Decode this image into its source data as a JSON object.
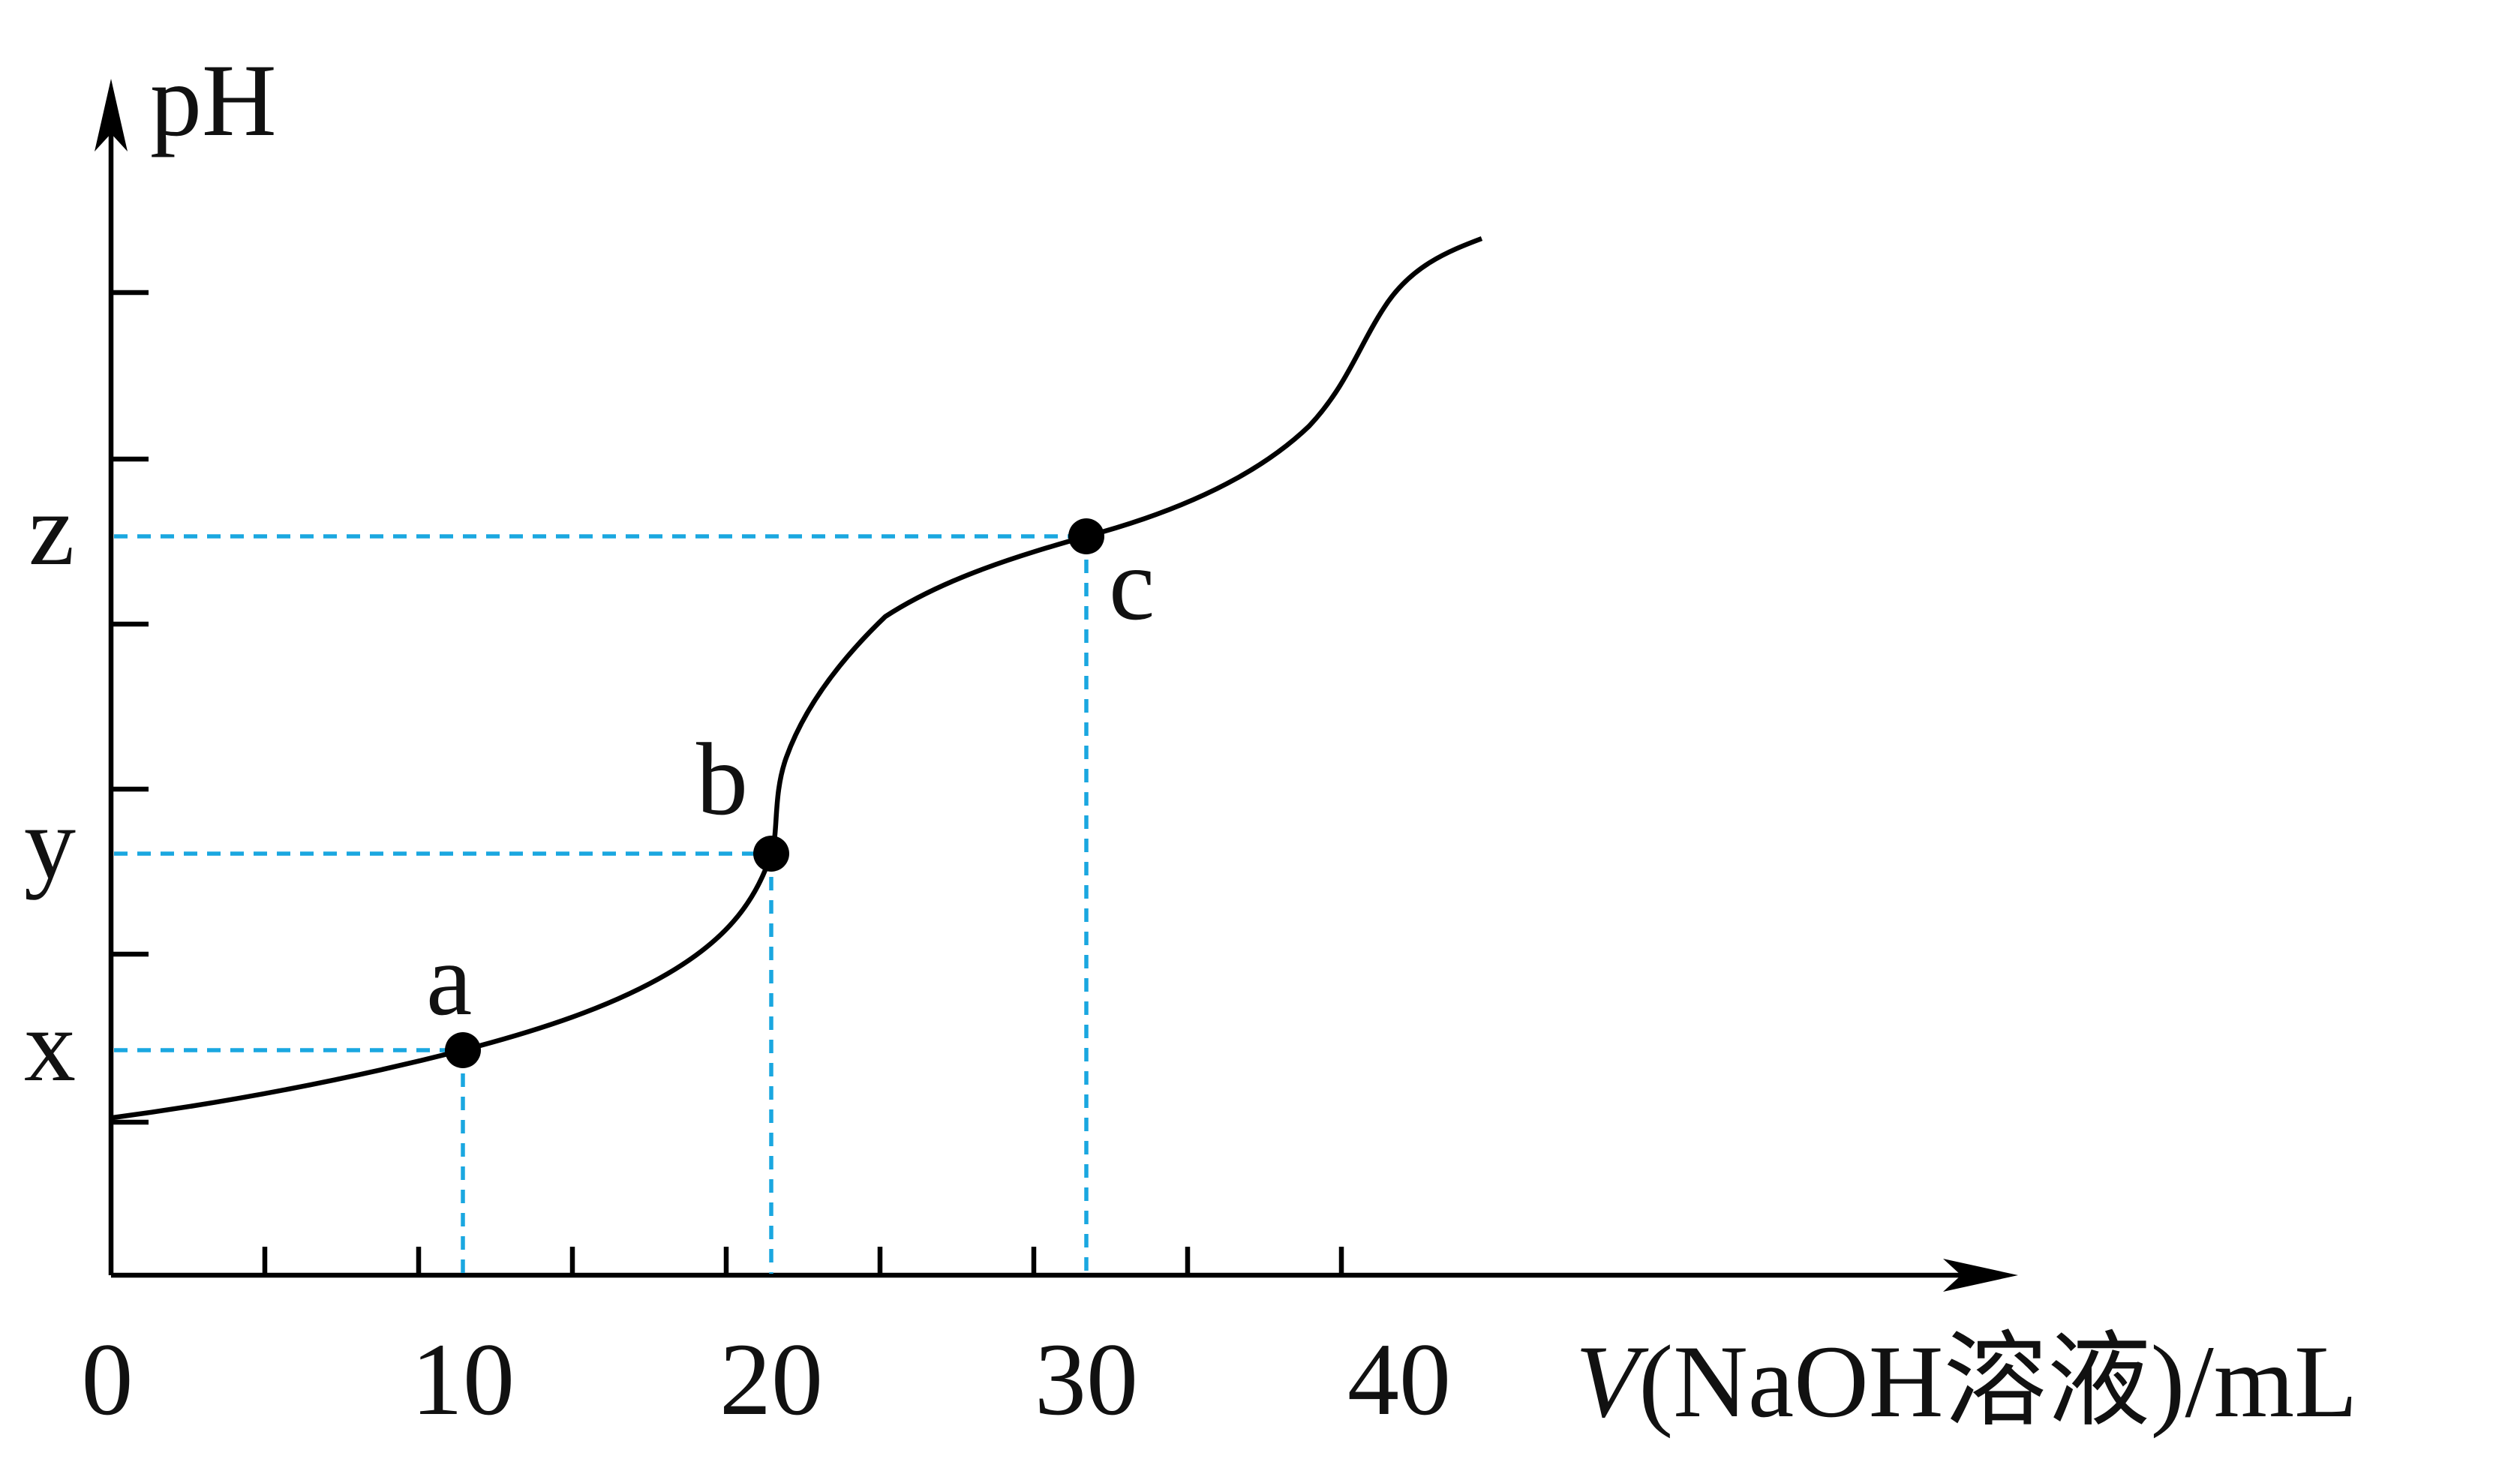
{
  "chart_data": {
    "type": "line",
    "title": "",
    "ylabel": "pH",
    "xlabel": {
      "symbol": "V",
      "substance": "(NaOH溶液)",
      "unit": "/mL"
    },
    "x_ticks": [
      "0",
      "10",
      "20",
      "30",
      "40"
    ],
    "xlim": [
      0,
      60
    ],
    "y_markers": [
      {
        "label": "x",
        "x": 10
      },
      {
        "label": "y",
        "x": 20
      },
      {
        "label": "z",
        "x": 30
      }
    ],
    "points": [
      {
        "label": "a",
        "x": 10
      },
      {
        "label": "b",
        "x": 20
      },
      {
        "label": "c",
        "x": 30
      }
    ],
    "grid": false,
    "legend": "none"
  }
}
